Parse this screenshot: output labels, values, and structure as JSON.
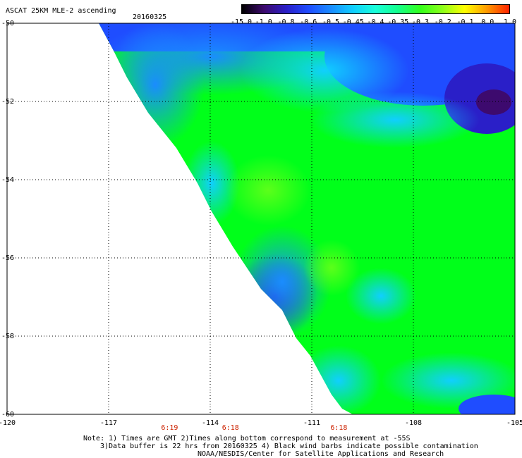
{
  "header": {
    "title": "ASCAT 25KM MLE-2 ascending",
    "date": "20160325"
  },
  "colorbar": {
    "labels": [
      "-15.0",
      "-1.0",
      "-0.8",
      "-0.6",
      "-0.5",
      "-0.45",
      "-0.4",
      "-0.35",
      "-0.3",
      "-0.2",
      "-0.1",
      "0.0",
      "1.0"
    ],
    "colors": [
      "#000000",
      "#3d0a6e",
      "#2a1fc8",
      "#1f4dff",
      "#1a8cff",
      "#10cfff",
      "#19ffd9",
      "#13ff8c",
      "#33ff1a",
      "#8cff1a",
      "#ffff00",
      "#ff9900",
      "#ff2200"
    ]
  },
  "map": {
    "lon_range": [
      -120,
      -105
    ],
    "lat_range": [
      -60,
      -50
    ],
    "x_labels": [
      "-120",
      "-117",
      "-114",
      "-111",
      "-108",
      "-105"
    ],
    "y_labels": [
      "-50",
      "-52",
      "-54",
      "-56",
      "-58",
      "-60"
    ],
    "y_label_values": [
      -50,
      -52,
      -54,
      -56,
      -58,
      -60
    ],
    "times": [
      {
        "label": "6:19",
        "lon": -115.2
      },
      {
        "label": "6:18",
        "lon": -113.4
      },
      {
        "label": "6:18",
        "lon": -110.2
      }
    ],
    "background_color": "#00ff1a"
  },
  "notes": {
    "line1": "Note: 1) Times are GMT 2)Times along bottom correspond to measurement at -55S",
    "line2": "3)Data buffer is 22 hrs from 20160325 4) Black wind barbs indicate possible contamination",
    "line3": "NOAA/NESDIS/Center for Satellite Applications and Research"
  }
}
